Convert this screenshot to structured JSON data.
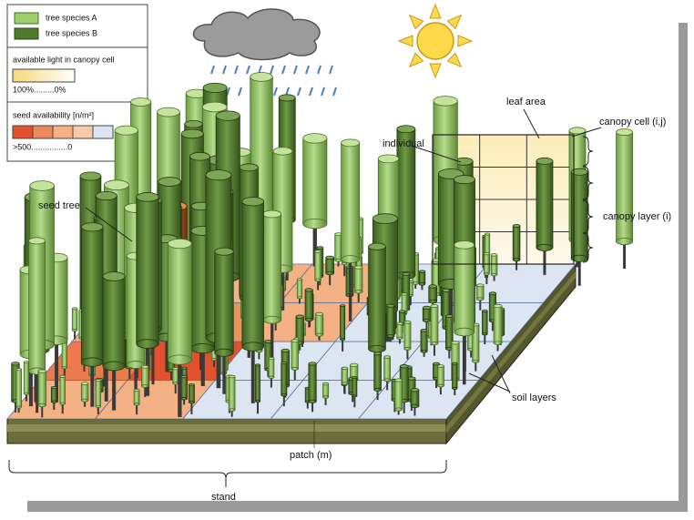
{
  "legend": {
    "species": [
      "tree species A",
      "tree species B"
    ],
    "light": {
      "title": "available light in canopy cell",
      "scale": "100%.........0%"
    },
    "seed": {
      "title": "seed availability [n/m²]",
      "scale": ">500................0"
    }
  },
  "labels": {
    "seed_tree": "seed tree",
    "individual": "individual",
    "leaf_area": "leaf area",
    "canopy_cell": "canopy cell (i,j)",
    "canopy_layer": "canopy layer (i)",
    "soil_layers": "soil layers",
    "patch": "patch (m)",
    "stand": "stand"
  }
}
